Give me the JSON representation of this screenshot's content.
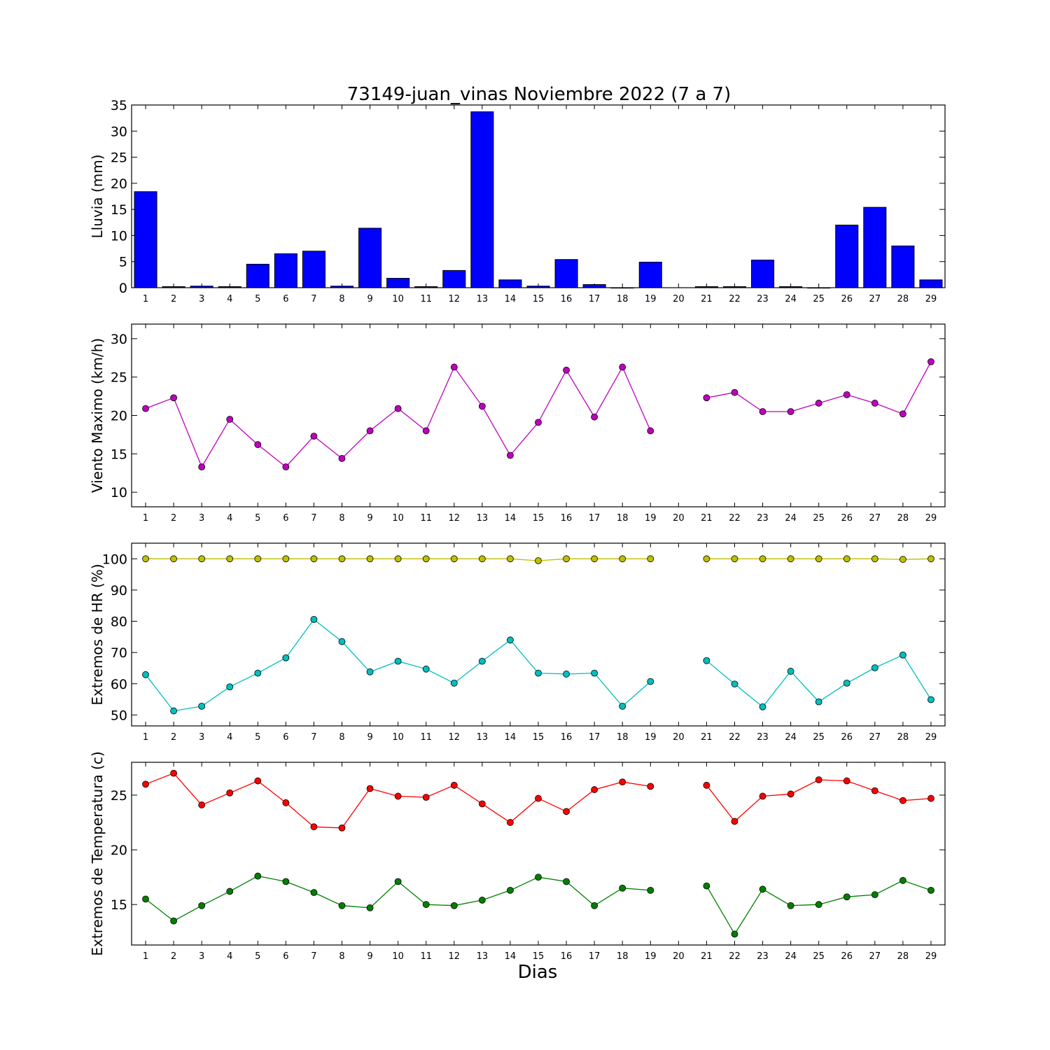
{
  "figure": {
    "title": "73149-juan_vinas Noviembre 2022  (7 a 7)",
    "xlabel": "Dias"
  },
  "colors": {
    "rain": "#0000ff",
    "wind": "#bf00bf",
    "hr_max": "#bfbf00",
    "hr_min": "#00bfbf",
    "temp_max": "#ff0000",
    "temp_min": "#008000"
  },
  "chart_data": [
    {
      "type": "bar",
      "ylabel": "Lluvia (mm)",
      "ylim": [
        0,
        35
      ],
      "yticks": [
        0,
        5,
        10,
        15,
        20,
        25,
        30,
        35
      ],
      "categories": [
        1,
        2,
        3,
        4,
        5,
        6,
        7,
        8,
        9,
        10,
        11,
        12,
        13,
        14,
        15,
        16,
        17,
        18,
        19,
        20,
        21,
        22,
        23,
        24,
        25,
        26,
        27,
        28,
        29
      ],
      "series": [
        {
          "color_key": "rain",
          "values": [
            18.4,
            0.2,
            0.3,
            0.2,
            4.5,
            6.5,
            7.0,
            0.3,
            11.4,
            1.8,
            0.2,
            3.3,
            33.7,
            1.5,
            0.3,
            5.4,
            0.6,
            0.0,
            4.9,
            null,
            0.2,
            0.2,
            5.3,
            0.2,
            0.0,
            12.0,
            15.4,
            8.0,
            1.5
          ]
        }
      ]
    },
    {
      "type": "line",
      "ylabel": "Viento Maximo (km/h)",
      "ylim": [
        8.1,
        31.9
      ],
      "yticks": [
        10,
        15,
        20,
        25,
        30
      ],
      "categories": [
        1,
        2,
        3,
        4,
        5,
        6,
        7,
        8,
        9,
        10,
        11,
        12,
        13,
        14,
        15,
        16,
        17,
        18,
        19,
        20,
        21,
        22,
        23,
        24,
        25,
        26,
        27,
        28,
        29
      ],
      "series": [
        {
          "color_key": "wind",
          "values": [
            20.9,
            22.3,
            13.3,
            19.5,
            16.2,
            13.3,
            17.3,
            14.4,
            18.0,
            20.9,
            18.0,
            26.3,
            21.2,
            14.8,
            19.1,
            25.9,
            19.8,
            26.3,
            18.0,
            null,
            22.3,
            23.0,
            20.5,
            20.5,
            21.6,
            22.7,
            21.6,
            20.2,
            27.0
          ]
        }
      ]
    },
    {
      "type": "line",
      "ylabel": "Extremos de HR (%)",
      "ylim": [
        46.5,
        105
      ],
      "yticks": [
        50,
        60,
        70,
        80,
        90,
        100
      ],
      "categories": [
        1,
        2,
        3,
        4,
        5,
        6,
        7,
        8,
        9,
        10,
        11,
        12,
        13,
        14,
        15,
        16,
        17,
        18,
        19,
        20,
        21,
        22,
        23,
        24,
        25,
        26,
        27,
        28,
        29
      ],
      "series": [
        {
          "color_key": "hr_max",
          "values": [
            100,
            100,
            100,
            100,
            100,
            100,
            100,
            100,
            100,
            100,
            100,
            100,
            100,
            100,
            99.4,
            100,
            100,
            100,
            100,
            null,
            100,
            100,
            100,
            100,
            100,
            100,
            100,
            99.8,
            100
          ]
        },
        {
          "color_key": "hr_min",
          "values": [
            62.9,
            51.3,
            52.8,
            59.0,
            63.4,
            68.3,
            80.6,
            73.5,
            63.8,
            67.2,
            64.7,
            60.2,
            67.2,
            74.0,
            63.4,
            63.1,
            63.4,
            52.8,
            60.7,
            null,
            67.4,
            59.9,
            52.6,
            64.0,
            54.2,
            60.2,
            65.1,
            69.2,
            54.9
          ]
        }
      ]
    },
    {
      "type": "line",
      "ylabel": "Extremos de Temperatura (c)",
      "ylim": [
        11.3,
        28.0
      ],
      "yticks": [
        15,
        20,
        25
      ],
      "categories": [
        1,
        2,
        3,
        4,
        5,
        6,
        7,
        8,
        9,
        10,
        11,
        12,
        13,
        14,
        15,
        16,
        17,
        18,
        19,
        20,
        21,
        22,
        23,
        24,
        25,
        26,
        27,
        28,
        29
      ],
      "series": [
        {
          "color_key": "temp_max",
          "values": [
            26.0,
            27.0,
            24.1,
            25.2,
            26.3,
            24.3,
            22.1,
            22.0,
            25.6,
            24.9,
            24.8,
            25.9,
            24.2,
            22.5,
            24.7,
            23.5,
            25.5,
            26.2,
            25.8,
            null,
            25.9,
            22.6,
            24.9,
            25.1,
            26.4,
            26.3,
            25.4,
            24.5,
            24.7
          ]
        },
        {
          "color_key": "temp_min",
          "values": [
            15.5,
            13.5,
            14.9,
            16.2,
            17.6,
            17.1,
            16.1,
            14.9,
            14.7,
            17.1,
            15.0,
            14.9,
            15.4,
            16.3,
            17.5,
            17.1,
            14.9,
            16.5,
            16.3,
            null,
            16.7,
            12.3,
            16.4,
            14.9,
            15.0,
            15.7,
            15.9,
            17.2,
            16.3
          ]
        }
      ]
    }
  ]
}
